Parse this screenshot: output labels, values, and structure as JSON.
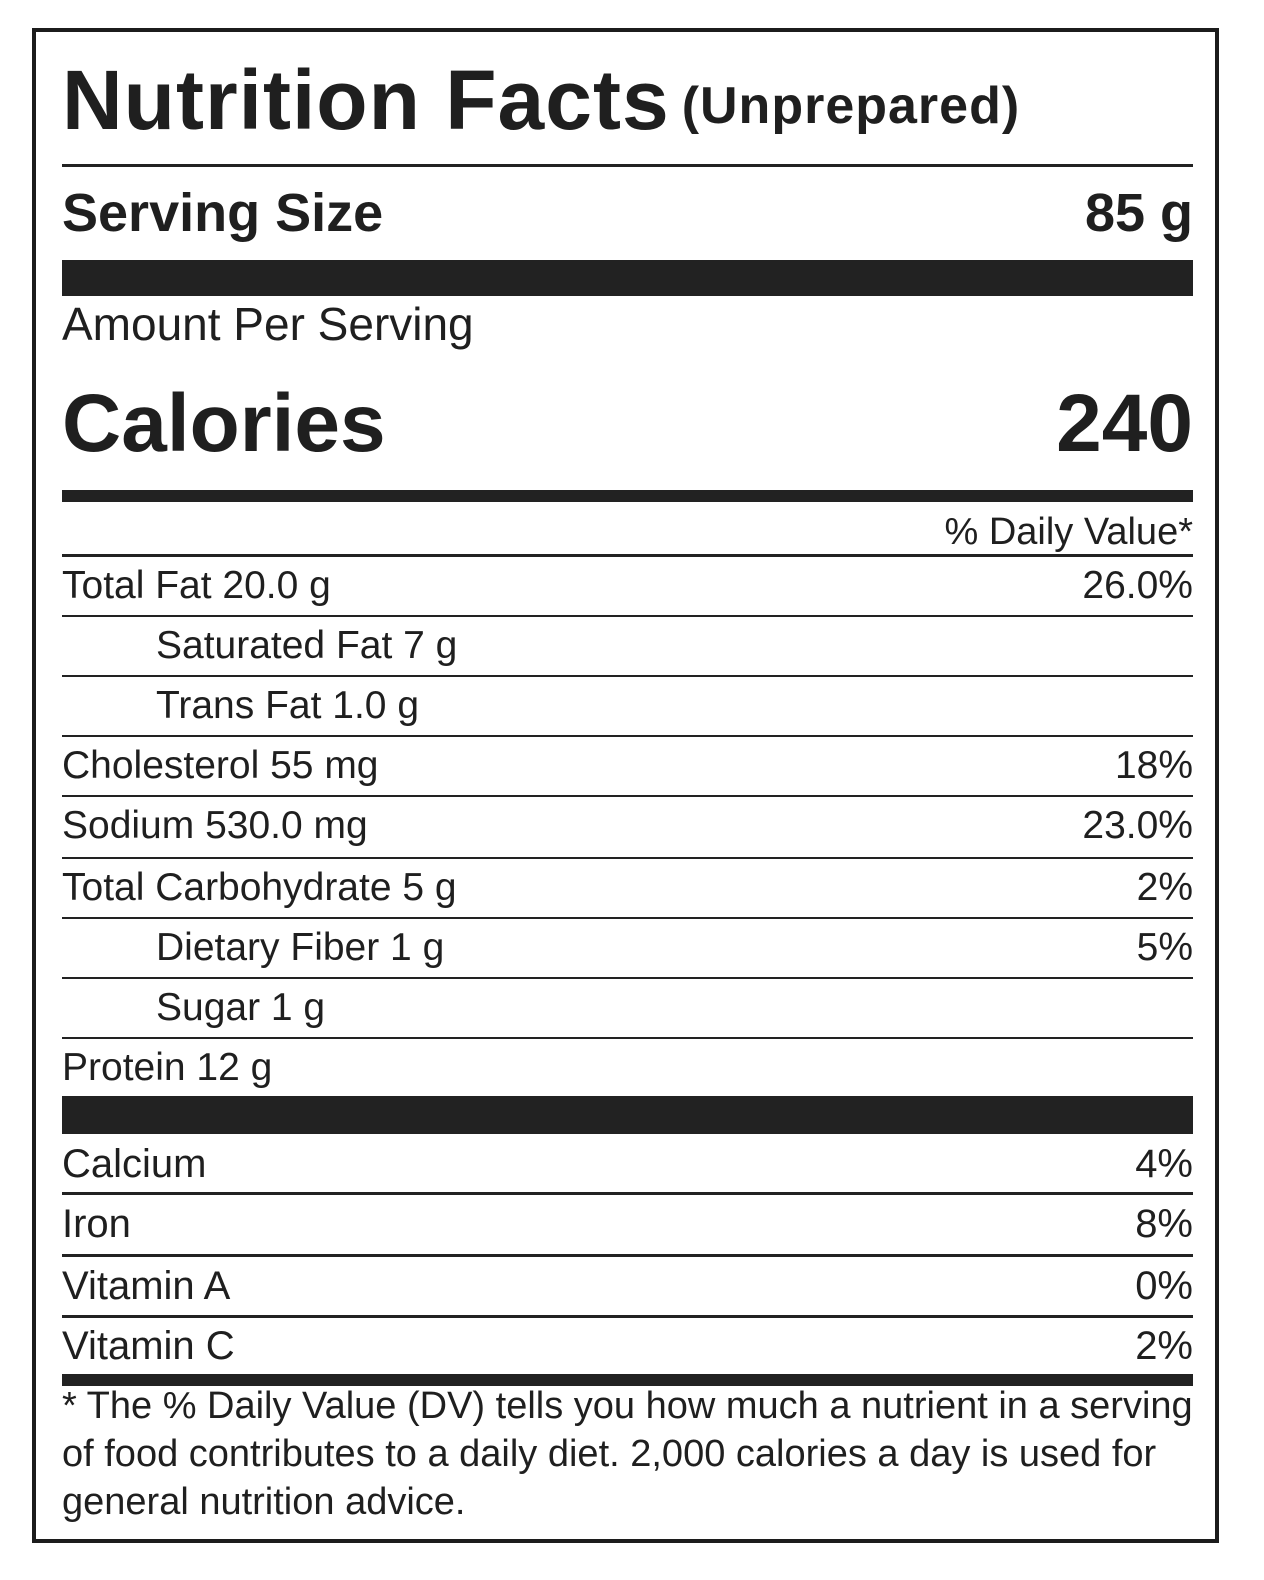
{
  "label": {
    "title": "Nutrition Facts",
    "subtitle": "(Unprepared)",
    "serving_size_label": "Serving Size",
    "serving_size_value": "85 g",
    "amount_per_serving": "Amount Per Serving",
    "calories_label": "Calories",
    "calories_value": "240",
    "daily_value_header": "% Daily Value*",
    "nutrients": [
      {
        "name": "Total Fat 20.0 g",
        "dv": "26.0%"
      },
      {
        "name": "Saturated Fat 7 g",
        "dv": ""
      },
      {
        "name": "Trans Fat 1.0 g",
        "dv": ""
      },
      {
        "name": "Cholesterol 55 mg",
        "dv": "18%"
      },
      {
        "name": "Sodium 530.0 mg",
        "dv": "23.0%"
      },
      {
        "name": "Total Carbohydrate 5 g",
        "dv": "2%"
      },
      {
        "name": "Dietary Fiber 1 g",
        "dv": "5%"
      },
      {
        "name": "Sugar 1 g",
        "dv": ""
      },
      {
        "name": "Protein 12 g",
        "dv": ""
      }
    ],
    "vitamins": [
      {
        "name": "Calcium",
        "dv": "4%"
      },
      {
        "name": "Iron",
        "dv": "8%"
      },
      {
        "name": "Vitamin A",
        "dv": "0%"
      },
      {
        "name": "Vitamin C",
        "dv": "2%"
      }
    ],
    "footnote": "* The % Daily Value (DV) tells you how much a nutrient in a serving of food contributes to a daily diet. 2,000 calories a day is used for general nutrition advice."
  }
}
